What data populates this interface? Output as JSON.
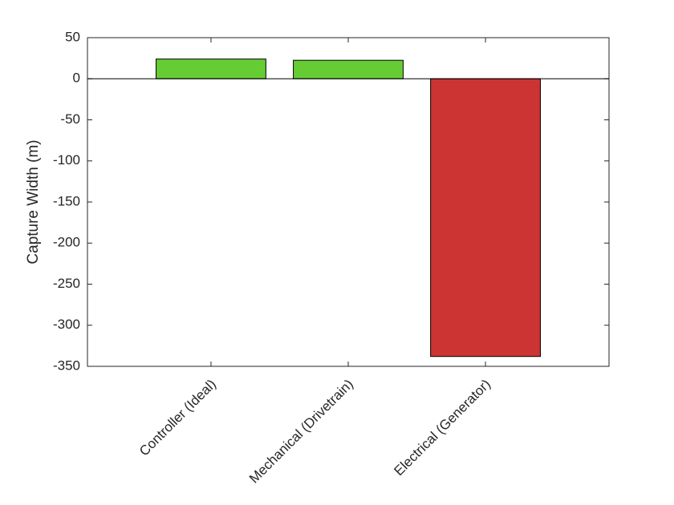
{
  "chart_data": {
    "type": "bar",
    "ylabel": "Capture Width (m)",
    "categories": [
      "Controller (Ideal)",
      "Mechanical (Drivetrain)",
      "Electrical (Generator)"
    ],
    "values": [
      24,
      22.5,
      -338
    ],
    "colors": [
      "#66cc33",
      "#66cc33",
      "#cc3333"
    ],
    "ylim": [
      -350,
      50
    ],
    "yticks": [
      -350,
      -300,
      -250,
      -200,
      -150,
      -100,
      -50,
      0,
      50
    ]
  }
}
